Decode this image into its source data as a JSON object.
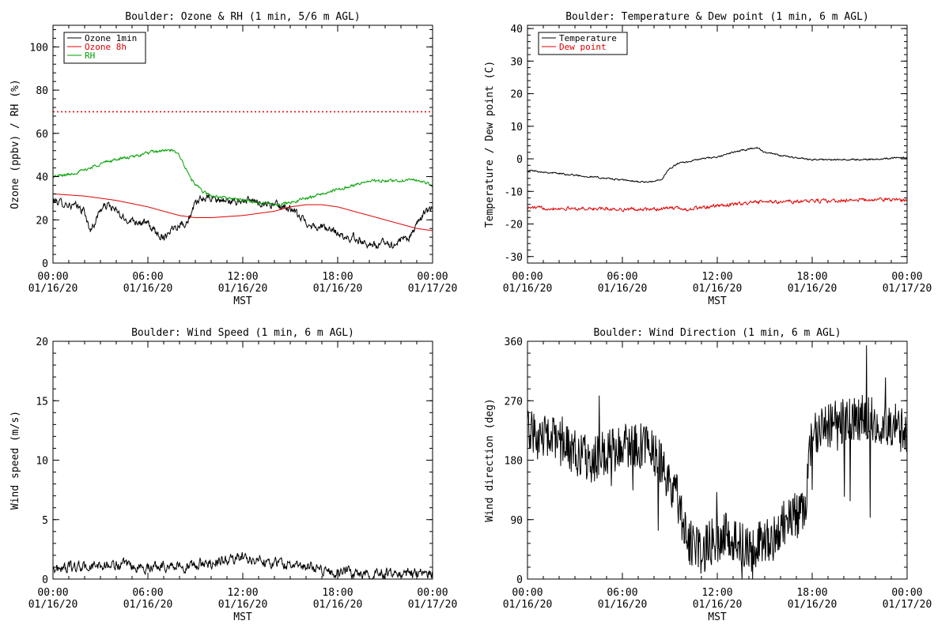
{
  "colors": {
    "ozone_1min": "#000000",
    "ozone_8h": "#e00000",
    "rh": "#00a000",
    "temperature": "#000000",
    "dew_point": "#e00000",
    "wind": "#000000"
  },
  "chart_data": [
    {
      "type": "line",
      "title": "Boulder: Ozone & RH (1 min, 5/6 m AGL)",
      "xlabel": "MST",
      "ylabel": "Ozone (ppbv) / RH (%)",
      "xlim": [
        0,
        24
      ],
      "ylim": [
        0,
        110
      ],
      "yticks": [
        0,
        20,
        40,
        60,
        80,
        100
      ],
      "xtick_labels": [
        [
          "00:00",
          "01/16/20"
        ],
        [
          "06:00",
          "01/16/20"
        ],
        [
          "12:00",
          "01/16/20"
        ],
        [
          "18:00",
          "01/16/20"
        ],
        [
          "00:00",
          "01/17/20"
        ]
      ],
      "legend": {
        "placement": "top-left",
        "entries": [
          "Ozone 1min",
          "Ozone 8h",
          "RH"
        ]
      },
      "reference_lines": [
        {
          "y": 70,
          "style": "dotted",
          "color": "#e00000"
        }
      ],
      "series": [
        {
          "name": "Ozone 1min",
          "color": "#000000",
          "noise": 1.8,
          "spiky": false,
          "x": [
            0,
            0.5,
            1,
            1.5,
            2,
            2.3,
            2.6,
            3,
            3.5,
            4,
            4.5,
            5,
            5.5,
            6,
            6.5,
            7,
            7.5,
            8,
            8.5,
            9,
            9.5,
            10,
            10.5,
            11,
            11.5,
            12,
            13,
            14,
            14.5,
            15,
            15.5,
            16,
            16.5,
            17,
            17.5,
            18,
            18.5,
            19,
            19.5,
            20,
            20.5,
            21,
            21.5,
            22,
            22.5,
            23,
            23.5,
            24
          ],
          "y": [
            29,
            28,
            27,
            26,
            24,
            15,
            18,
            25,
            27,
            24,
            20,
            20,
            19,
            18,
            14,
            12,
            16,
            18,
            19,
            27,
            30,
            30,
            29,
            29,
            28,
            29,
            28,
            27,
            26,
            25,
            22,
            19,
            17,
            17,
            15,
            14,
            11,
            12,
            10,
            9,
            8,
            10,
            8,
            11,
            12,
            17,
            24,
            24
          ]
        },
        {
          "name": "Ozone 8h",
          "color": "#e00000",
          "noise": 0,
          "spiky": false,
          "x": [
            0,
            2,
            4,
            6,
            7,
            8,
            9,
            10,
            12,
            14,
            15,
            16,
            17,
            18,
            19,
            20,
            21,
            22,
            23,
            24
          ],
          "y": [
            32,
            31,
            29,
            26,
            24,
            22,
            21,
            21,
            22,
            24,
            26,
            27,
            27,
            26,
            24,
            22,
            20,
            18,
            16,
            15
          ]
        },
        {
          "name": "RH",
          "color": "#00a000",
          "noise": 0.7,
          "spiky": false,
          "x": [
            0,
            1,
            2,
            3,
            4,
            5,
            6,
            7,
            7.5,
            8,
            8.5,
            9,
            9.5,
            10,
            11,
            12,
            13,
            14,
            15,
            16,
            17,
            18,
            19,
            20,
            21,
            22,
            22.5,
            23,
            23.5,
            24
          ],
          "y": [
            40,
            41,
            43,
            46,
            48,
            49,
            51,
            52,
            52,
            50,
            42,
            36,
            33,
            31,
            30,
            29,
            28,
            27,
            28,
            30,
            32,
            34,
            36,
            38,
            38,
            38,
            39,
            38,
            37,
            36
          ]
        }
      ]
    },
    {
      "type": "line",
      "title": "Boulder: Temperature & Dew point (1 min, 6 m AGL)",
      "xlabel": "MST",
      "ylabel": "Temperature / Dew point (C)",
      "xlim": [
        0,
        24
      ],
      "ylim": [
        -32,
        41
      ],
      "yticks": [
        -30,
        -20,
        -10,
        0,
        10,
        20,
        30,
        40
      ],
      "xtick_labels": [
        [
          "00:00",
          "01/16/20"
        ],
        [
          "06:00",
          "01/16/20"
        ],
        [
          "12:00",
          "01/16/20"
        ],
        [
          "18:00",
          "01/16/20"
        ],
        [
          "00:00",
          "01/17/20"
        ]
      ],
      "legend": {
        "placement": "top-left",
        "entries": [
          "Temperature",
          "Dew point"
        ]
      },
      "series": [
        {
          "name": "Temperature",
          "color": "#000000",
          "noise": 0.25,
          "spiky": false,
          "x": [
            0,
            1,
            2,
            3,
            4,
            5,
            6,
            7,
            7.5,
            8,
            8.5,
            9,
            9.5,
            10,
            11,
            12,
            13,
            14,
            14.5,
            15,
            16,
            17,
            18,
            19,
            20,
            21,
            22,
            23,
            24
          ],
          "y": [
            -3.5,
            -4,
            -4.5,
            -5,
            -5.5,
            -6,
            -6.5,
            -7,
            -7.2,
            -7,
            -6,
            -3,
            -1.5,
            -1,
            0,
            0.5,
            2,
            3,
            3.5,
            2,
            1,
            0.3,
            -0.2,
            -0.3,
            -0.3,
            -0.2,
            -0.1,
            0.2,
            0.5
          ]
        },
        {
          "name": "Dew point",
          "color": "#e00000",
          "noise": 0.5,
          "spiky": false,
          "x": [
            0,
            2,
            4,
            6,
            8,
            9,
            10,
            11,
            12,
            13,
            14,
            15,
            16,
            18,
            20,
            22,
            23,
            24
          ],
          "y": [
            -15,
            -15.2,
            -15.3,
            -15.5,
            -15.5,
            -15,
            -15.5,
            -15,
            -14.5,
            -14,
            -13.5,
            -13.2,
            -13.2,
            -13,
            -12.8,
            -12.5,
            -12.5,
            -12.8
          ]
        }
      ]
    },
    {
      "type": "line",
      "title": "Boulder: Wind Speed (1 min, 6 m AGL)",
      "xlabel": "MST",
      "ylabel": "Wind speed (m/s)",
      "xlim": [
        0,
        24
      ],
      "ylim": [
        0,
        20
      ],
      "yticks": [
        0,
        5,
        10,
        15,
        20
      ],
      "xtick_labels": [
        [
          "00:00",
          "01/16/20"
        ],
        [
          "06:00",
          "01/16/20"
        ],
        [
          "12:00",
          "01/16/20"
        ],
        [
          "18:00",
          "01/16/20"
        ],
        [
          "00:00",
          "01/17/20"
        ]
      ],
      "series": [
        {
          "name": "",
          "color": "#000000",
          "noise": 0.45,
          "spiky": false,
          "floor": 0,
          "x": [
            0,
            1,
            2,
            3,
            4,
            5,
            6,
            7,
            8,
            9,
            10,
            11,
            12,
            13,
            14,
            15,
            16,
            17,
            18,
            19,
            20,
            21,
            22,
            23,
            24
          ],
          "y": [
            0.9,
            1.0,
            1.0,
            1.1,
            1.2,
            1.0,
            1.0,
            1.2,
            1.1,
            1.1,
            1.4,
            1.6,
            1.8,
            1.6,
            1.4,
            1.2,
            1.0,
            0.8,
            0.6,
            0.5,
            0.5,
            0.5,
            0.5,
            0.5,
            0.5
          ]
        }
      ]
    },
    {
      "type": "line",
      "title": "Boulder: Wind Direction (1 min, 6 m AGL)",
      "xlabel": "MST",
      "ylabel": "Wind direction (deg)",
      "xlim": [
        0,
        24
      ],
      "ylim": [
        0,
        360
      ],
      "yticks": [
        0,
        90,
        180,
        270,
        360
      ],
      "xtick_labels": [
        [
          "00:00",
          "01/16/20"
        ],
        [
          "06:00",
          "01/16/20"
        ],
        [
          "12:00",
          "01/16/20"
        ],
        [
          "18:00",
          "01/16/20"
        ],
        [
          "00:00",
          "01/17/20"
        ]
      ],
      "series": [
        {
          "name": "",
          "color": "#000000",
          "noise": 30,
          "spiky": true,
          "floor": 0,
          "ceil": 360,
          "x": [
            0,
            1,
            2,
            3,
            4,
            5,
            6,
            7,
            8,
            8.5,
            9,
            9.5,
            10,
            10.5,
            11,
            11.5,
            12,
            12.5,
            13,
            13.5,
            14,
            14.5,
            15,
            15.5,
            16,
            16.5,
            17,
            17.5,
            18,
            19,
            20,
            21,
            22,
            23,
            23.5,
            24
          ],
          "y": [
            220,
            215,
            205,
            190,
            180,
            190,
            200,
            205,
            190,
            170,
            150,
            120,
            70,
            45,
            40,
            55,
            60,
            70,
            55,
            50,
            45,
            50,
            60,
            50,
            85,
            90,
            95,
            95,
            225,
            230,
            240,
            245,
            240,
            235,
            230,
            220
          ]
        }
      ]
    }
  ]
}
